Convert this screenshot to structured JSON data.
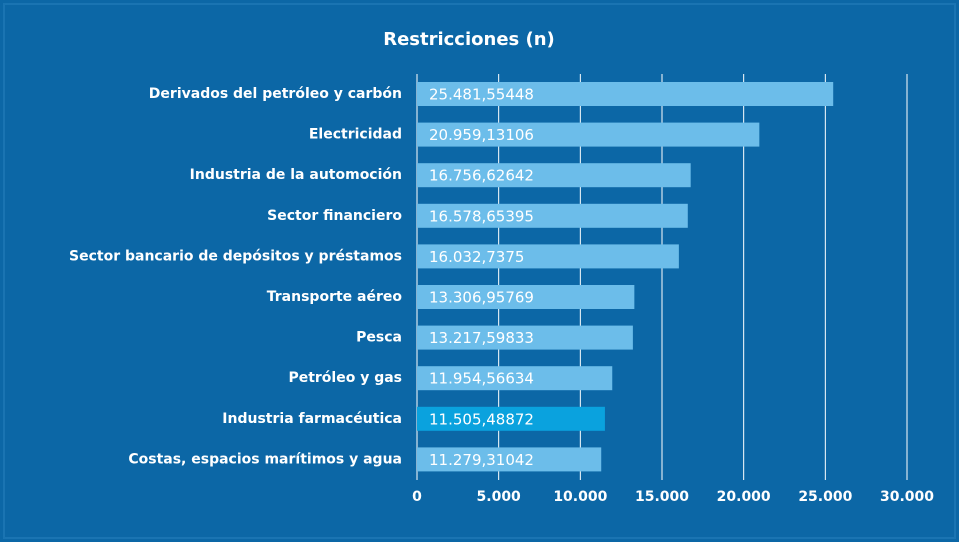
{
  "chart_data": {
    "type": "barh",
    "title": "Restricciones (n)",
    "categories": [
      "Derivados del petróleo y carbón",
      "Electricidad",
      "Industria de la automoción",
      "Sector financiero",
      "Sector bancario de depósitos y préstamos",
      "Transporte aéreo",
      "Pesca",
      "Petróleo y gas",
      "Industria farmacéutica",
      "Costas, espacios marítimos y agua"
    ],
    "values": [
      25481.55448,
      20959.13106,
      16756.62642,
      16578.65395,
      16032.7375,
      13306.95769,
      13217.59833,
      11954.56634,
      11505.48872,
      11279.31042
    ],
    "value_labels": [
      "25.481,55448",
      "20.959,13106",
      "16.756,62642",
      "16.578,65395",
      "16.032,7375",
      "13.306,95769",
      "13.217,59833",
      "11.954,56634",
      "11.505,48872",
      "11.279,31042"
    ],
    "colors": [
      "#6cbdea",
      "#6cbdea",
      "#6cbdea",
      "#6cbdea",
      "#6cbdea",
      "#6cbdea",
      "#6cbdea",
      "#6cbdea",
      "#0aa2de",
      "#6cbdea"
    ],
    "xlim": [
      0,
      30000
    ],
    "xticks": [
      0,
      {
        "value": 5000,
        "label": "5.000"
      },
      {
        "value": 10000,
        "label": "10.000"
      },
      {
        "value": 15000,
        "label": "15.000"
      },
      {
        "value": 20000,
        "label": "20.000"
      },
      {
        "value": 25000,
        "label": "25.000"
      },
      {
        "value": 30000,
        "label": "30.000"
      }
    ],
    "grid": true
  }
}
